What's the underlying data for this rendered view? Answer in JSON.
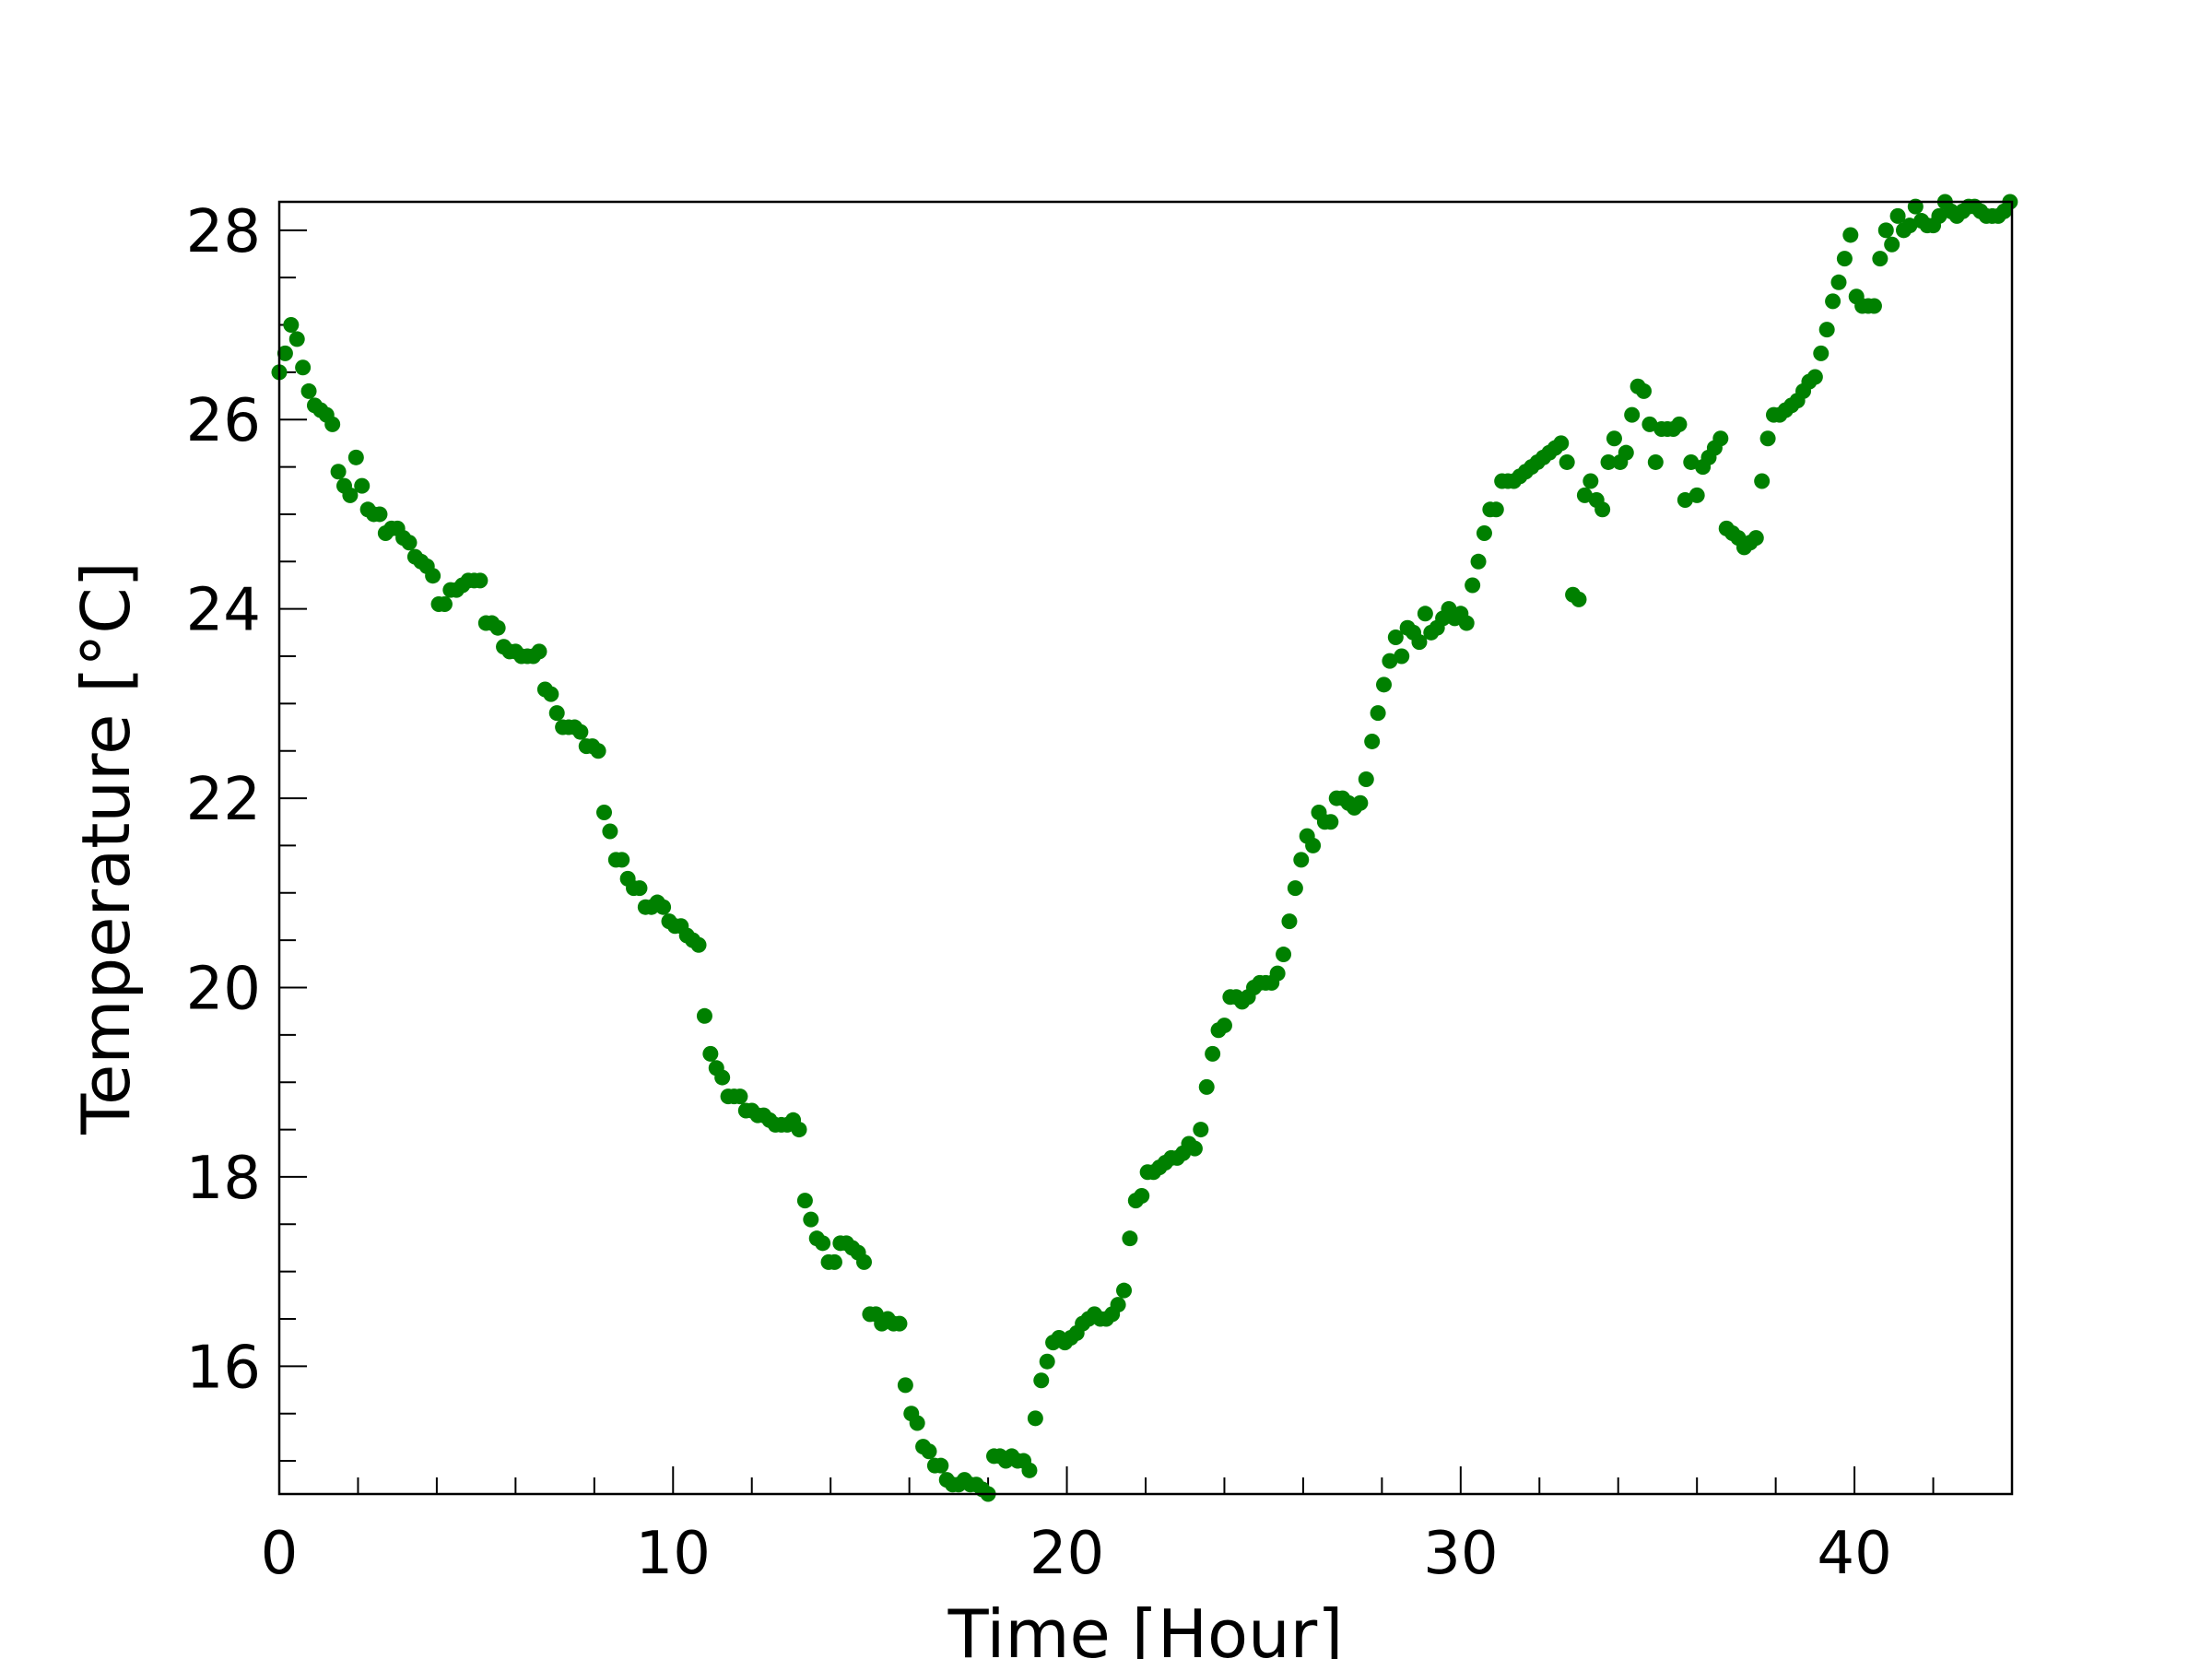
{
  "chart_data": {
    "type": "scatter",
    "title": "",
    "xlabel": "Time [Hour]",
    "ylabel": "Temperature [°C]",
    "xlim": [
      0,
      44
    ],
    "ylim": [
      14.65,
      28.3
    ],
    "x_ticks": [
      0,
      10,
      20,
      30,
      40
    ],
    "x_tick_labels": [
      "0",
      "10",
      "20",
      "30",
      "40"
    ],
    "y_ticks": [
      16,
      18,
      20,
      22,
      24,
      26,
      28
    ],
    "y_tick_labels": [
      "16",
      "18",
      "20",
      "22",
      "24",
      "26",
      "28"
    ],
    "x_minor_step": 2,
    "y_minor_step": 0.5,
    "grid": false,
    "marker_color": "#008000",
    "series": [
      {
        "points": [
          [
            0.0,
            26.5
          ],
          [
            0.15,
            26.7
          ],
          [
            0.3,
            27.0
          ],
          [
            0.45,
            26.85
          ],
          [
            0.6,
            26.55
          ],
          [
            0.75,
            26.3
          ],
          [
            0.9,
            26.15
          ],
          [
            1.05,
            26.1
          ],
          [
            1.2,
            26.05
          ],
          [
            1.35,
            25.95
          ],
          [
            1.5,
            25.45
          ],
          [
            1.65,
            25.3
          ],
          [
            1.8,
            25.2
          ],
          [
            1.95,
            25.6
          ],
          [
            2.1,
            25.3
          ],
          [
            2.25,
            25.05
          ],
          [
            2.4,
            25.0
          ],
          [
            2.55,
            25.0
          ],
          [
            2.7,
            24.8
          ],
          [
            2.85,
            24.85
          ],
          [
            3.0,
            24.85
          ],
          [
            3.15,
            24.75
          ],
          [
            3.3,
            24.7
          ],
          [
            3.45,
            24.55
          ],
          [
            3.6,
            24.5
          ],
          [
            3.75,
            24.45
          ],
          [
            3.9,
            24.35
          ],
          [
            4.05,
            24.05
          ],
          [
            4.2,
            24.05
          ],
          [
            4.35,
            24.2
          ],
          [
            4.5,
            24.2
          ],
          [
            4.65,
            24.25
          ],
          [
            4.8,
            24.3
          ],
          [
            4.95,
            24.3
          ],
          [
            5.1,
            24.3
          ],
          [
            5.25,
            23.85
          ],
          [
            5.4,
            23.85
          ],
          [
            5.55,
            23.8
          ],
          [
            5.7,
            23.6
          ],
          [
            5.85,
            23.55
          ],
          [
            6.0,
            23.55
          ],
          [
            6.15,
            23.5
          ],
          [
            6.3,
            23.5
          ],
          [
            6.45,
            23.5
          ],
          [
            6.6,
            23.55
          ],
          [
            6.75,
            23.15
          ],
          [
            6.9,
            23.1
          ],
          [
            7.05,
            22.9
          ],
          [
            7.2,
            22.75
          ],
          [
            7.35,
            22.75
          ],
          [
            7.5,
            22.75
          ],
          [
            7.65,
            22.7
          ],
          [
            7.8,
            22.55
          ],
          [
            7.95,
            22.55
          ],
          [
            8.1,
            22.5
          ],
          [
            8.25,
            21.85
          ],
          [
            8.4,
            21.65
          ],
          [
            8.55,
            21.35
          ],
          [
            8.7,
            21.35
          ],
          [
            8.85,
            21.15
          ],
          [
            9.0,
            21.05
          ],
          [
            9.15,
            21.05
          ],
          [
            9.3,
            20.85
          ],
          [
            9.45,
            20.85
          ],
          [
            9.6,
            20.9
          ],
          [
            9.75,
            20.85
          ],
          [
            9.9,
            20.7
          ],
          [
            10.05,
            20.65
          ],
          [
            10.2,
            20.65
          ],
          [
            10.35,
            20.55
          ],
          [
            10.5,
            20.5
          ],
          [
            10.65,
            20.45
          ],
          [
            10.8,
            19.7
          ],
          [
            10.95,
            19.3
          ],
          [
            11.1,
            19.15
          ],
          [
            11.25,
            19.05
          ],
          [
            11.4,
            18.85
          ],
          [
            11.55,
            18.85
          ],
          [
            11.7,
            18.85
          ],
          [
            11.85,
            18.7
          ],
          [
            12.0,
            18.7
          ],
          [
            12.15,
            18.65
          ],
          [
            12.3,
            18.65
          ],
          [
            12.45,
            18.6
          ],
          [
            12.6,
            18.55
          ],
          [
            12.75,
            18.55
          ],
          [
            12.9,
            18.55
          ],
          [
            13.05,
            18.6
          ],
          [
            13.2,
            18.5
          ],
          [
            13.35,
            17.75
          ],
          [
            13.5,
            17.55
          ],
          [
            13.65,
            17.35
          ],
          [
            13.8,
            17.3
          ],
          [
            13.95,
            17.1
          ],
          [
            14.1,
            17.1
          ],
          [
            14.25,
            17.3
          ],
          [
            14.4,
            17.3
          ],
          [
            14.55,
            17.25
          ],
          [
            14.7,
            17.2
          ],
          [
            14.85,
            17.1
          ],
          [
            15.0,
            16.55
          ],
          [
            15.15,
            16.55
          ],
          [
            15.3,
            16.45
          ],
          [
            15.45,
            16.5
          ],
          [
            15.6,
            16.45
          ],
          [
            15.75,
            16.45
          ],
          [
            15.9,
            15.8
          ],
          [
            16.05,
            15.5
          ],
          [
            16.2,
            15.4
          ],
          [
            16.35,
            15.15
          ],
          [
            16.5,
            15.1
          ],
          [
            16.65,
            14.95
          ],
          [
            16.8,
            14.95
          ],
          [
            16.95,
            14.8
          ],
          [
            17.1,
            14.75
          ],
          [
            17.25,
            14.75
          ],
          [
            17.4,
            14.8
          ],
          [
            17.55,
            14.75
          ],
          [
            17.7,
            14.75
          ],
          [
            17.85,
            14.7
          ],
          [
            18.0,
            14.65
          ],
          [
            18.15,
            15.05
          ],
          [
            18.3,
            15.05
          ],
          [
            18.45,
            15.0
          ],
          [
            18.6,
            15.05
          ],
          [
            18.75,
            15.0
          ],
          [
            18.9,
            15.0
          ],
          [
            19.05,
            14.9
          ],
          [
            19.2,
            15.45
          ],
          [
            19.35,
            15.85
          ],
          [
            19.5,
            16.05
          ],
          [
            19.65,
            16.25
          ],
          [
            19.8,
            16.3
          ],
          [
            19.95,
            16.25
          ],
          [
            20.1,
            16.3
          ],
          [
            20.25,
            16.35
          ],
          [
            20.4,
            16.45
          ],
          [
            20.55,
            16.5
          ],
          [
            20.7,
            16.55
          ],
          [
            20.85,
            16.5
          ],
          [
            21.0,
            16.5
          ],
          [
            21.15,
            16.55
          ],
          [
            21.3,
            16.65
          ],
          [
            21.45,
            16.8
          ],
          [
            21.6,
            17.35
          ],
          [
            21.75,
            17.75
          ],
          [
            21.9,
            17.8
          ],
          [
            22.05,
            18.05
          ],
          [
            22.2,
            18.05
          ],
          [
            22.35,
            18.1
          ],
          [
            22.5,
            18.15
          ],
          [
            22.65,
            18.2
          ],
          [
            22.8,
            18.2
          ],
          [
            22.95,
            18.25
          ],
          [
            23.1,
            18.35
          ],
          [
            23.25,
            18.3
          ],
          [
            23.4,
            18.5
          ],
          [
            23.55,
            18.95
          ],
          [
            23.7,
            19.3
          ],
          [
            23.85,
            19.55
          ],
          [
            24.0,
            19.6
          ],
          [
            24.15,
            19.9
          ],
          [
            24.3,
            19.9
          ],
          [
            24.45,
            19.85
          ],
          [
            24.6,
            19.9
          ],
          [
            24.75,
            20.0
          ],
          [
            24.9,
            20.05
          ],
          [
            25.05,
            20.05
          ],
          [
            25.2,
            20.05
          ],
          [
            25.35,
            20.15
          ],
          [
            25.5,
            20.35
          ],
          [
            25.65,
            20.7
          ],
          [
            25.8,
            21.05
          ],
          [
            25.95,
            21.35
          ],
          [
            26.1,
            21.6
          ],
          [
            26.25,
            21.5
          ],
          [
            26.4,
            21.85
          ],
          [
            26.55,
            21.75
          ],
          [
            26.7,
            21.75
          ],
          [
            26.85,
            22.0
          ],
          [
            27.0,
            22.0
          ],
          [
            27.15,
            21.95
          ],
          [
            27.3,
            21.9
          ],
          [
            27.45,
            21.95
          ],
          [
            27.6,
            22.2
          ],
          [
            27.75,
            22.6
          ],
          [
            27.9,
            22.9
          ],
          [
            28.05,
            23.2
          ],
          [
            28.2,
            23.45
          ],
          [
            28.35,
            23.7
          ],
          [
            28.5,
            23.5
          ],
          [
            28.65,
            23.8
          ],
          [
            28.8,
            23.75
          ],
          [
            28.95,
            23.65
          ],
          [
            29.1,
            23.95
          ],
          [
            29.25,
            23.75
          ],
          [
            29.4,
            23.8
          ],
          [
            29.55,
            23.9
          ],
          [
            29.7,
            24.0
          ],
          [
            29.85,
            23.9
          ],
          [
            30.0,
            23.95
          ],
          [
            30.15,
            23.85
          ],
          [
            30.3,
            24.25
          ],
          [
            30.45,
            24.5
          ],
          [
            30.6,
            24.8
          ],
          [
            30.75,
            25.05
          ],
          [
            30.9,
            25.05
          ],
          [
            31.05,
            25.35
          ],
          [
            31.2,
            25.35
          ],
          [
            31.35,
            25.35
          ],
          [
            31.5,
            25.4
          ],
          [
            31.65,
            25.45
          ],
          [
            31.8,
            25.5
          ],
          [
            31.95,
            25.55
          ],
          [
            32.1,
            25.6
          ],
          [
            32.25,
            25.65
          ],
          [
            32.4,
            25.7
          ],
          [
            32.55,
            25.75
          ],
          [
            32.7,
            25.55
          ],
          [
            32.85,
            24.15
          ],
          [
            33.0,
            24.1
          ],
          [
            33.15,
            25.2
          ],
          [
            33.3,
            25.35
          ],
          [
            33.45,
            25.15
          ],
          [
            33.6,
            25.05
          ],
          [
            33.75,
            25.55
          ],
          [
            33.9,
            25.8
          ],
          [
            34.05,
            25.55
          ],
          [
            34.2,
            25.65
          ],
          [
            34.35,
            26.05
          ],
          [
            34.5,
            26.35
          ],
          [
            34.65,
            26.3
          ],
          [
            34.8,
            25.95
          ],
          [
            34.95,
            25.55
          ],
          [
            35.1,
            25.9
          ],
          [
            35.25,
            25.9
          ],
          [
            35.4,
            25.9
          ],
          [
            35.55,
            25.95
          ],
          [
            35.7,
            25.15
          ],
          [
            35.85,
            25.55
          ],
          [
            36.0,
            25.2
          ],
          [
            36.15,
            25.5
          ],
          [
            36.3,
            25.6
          ],
          [
            36.45,
            25.7
          ],
          [
            36.6,
            25.8
          ],
          [
            36.75,
            24.85
          ],
          [
            36.9,
            24.8
          ],
          [
            37.05,
            24.75
          ],
          [
            37.2,
            24.65
          ],
          [
            37.35,
            24.7
          ],
          [
            37.5,
            24.75
          ],
          [
            37.65,
            25.35
          ],
          [
            37.8,
            25.8
          ],
          [
            37.95,
            26.05
          ],
          [
            38.1,
            26.05
          ],
          [
            38.25,
            26.1
          ],
          [
            38.4,
            26.15
          ],
          [
            38.55,
            26.2
          ],
          [
            38.7,
            26.3
          ],
          [
            38.85,
            26.4
          ],
          [
            39.0,
            26.45
          ],
          [
            39.15,
            26.7
          ],
          [
            39.3,
            26.95
          ],
          [
            39.45,
            27.25
          ],
          [
            39.6,
            27.45
          ],
          [
            39.75,
            27.7
          ],
          [
            39.9,
            27.95
          ],
          [
            40.05,
            27.3
          ],
          [
            40.2,
            27.2
          ],
          [
            40.35,
            27.2
          ],
          [
            40.5,
            27.2
          ],
          [
            40.65,
            27.7
          ],
          [
            40.8,
            28.0
          ],
          [
            40.95,
            27.85
          ],
          [
            41.1,
            28.15
          ],
          [
            41.25,
            28.0
          ],
          [
            41.4,
            28.05
          ],
          [
            41.55,
            28.25
          ],
          [
            41.7,
            28.1
          ],
          [
            41.85,
            28.05
          ],
          [
            42.0,
            28.05
          ],
          [
            42.15,
            28.15
          ],
          [
            42.3,
            28.3
          ],
          [
            42.45,
            28.2
          ],
          [
            42.6,
            28.15
          ],
          [
            42.75,
            28.2
          ],
          [
            42.9,
            28.25
          ],
          [
            43.05,
            28.25
          ],
          [
            43.2,
            28.2
          ],
          [
            43.35,
            28.15
          ],
          [
            43.5,
            28.15
          ],
          [
            43.65,
            28.15
          ],
          [
            43.8,
            28.2
          ],
          [
            43.95,
            28.3
          ]
        ]
      }
    ]
  }
}
